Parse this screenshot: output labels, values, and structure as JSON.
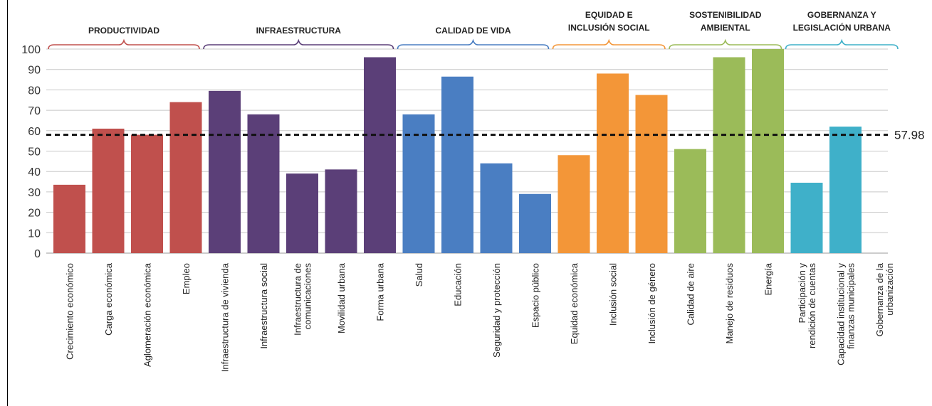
{
  "chart_data": {
    "type": "bar",
    "ylim": [
      0,
      100
    ],
    "yticks": [
      0,
      10,
      20,
      30,
      40,
      50,
      60,
      70,
      80,
      90,
      100
    ],
    "grid": true,
    "reference_line": {
      "value": 57.98,
      "label": "57.98",
      "style": "dashed"
    },
    "groups": [
      {
        "name": "PRODUCTIVIDAD",
        "name_lines": [
          "PRODUCTIVIDAD"
        ],
        "color": "#c0504d",
        "count": 4
      },
      {
        "name": "INFRAESTRUCTURA",
        "name_lines": [
          "INFRAESTRUCTURA"
        ],
        "color": "#5b3f78",
        "count": 5
      },
      {
        "name": "CALIDAD DE VIDA",
        "name_lines": [
          "CALIDAD DE VIDA"
        ],
        "color": "#4a7ec2",
        "count": 4
      },
      {
        "name": "EQUIDAD E INCLUSIÓN SOCIAL",
        "name_lines": [
          "EQUIDAD E",
          "INCLUSIÓN SOCIAL"
        ],
        "color": "#f39638",
        "count": 3
      },
      {
        "name": "SOSTENIBILIDAD AMBIENTAL",
        "name_lines": [
          "SOSTENIBILIDAD",
          "AMBIENTAL"
        ],
        "color": "#9bbb59",
        "count": 3
      },
      {
        "name": "GOBERNANZA Y LEGISLACIÓN URBANA",
        "name_lines": [
          "GOBERNANZA Y",
          "LEGISLACIÓN URBANA"
        ],
        "color": "#3fb0c9",
        "count": 3
      }
    ],
    "categories": [
      [
        "Crecimiento económico"
      ],
      [
        "Carga económica"
      ],
      [
        "Aglomeración económica"
      ],
      [
        "Empleo"
      ],
      [
        "Infraestructura de vivienda"
      ],
      [
        "Infraestructura social"
      ],
      [
        "Infraestructura de",
        "comunicaciones"
      ],
      [
        "Movilidad urbana"
      ],
      [
        "Forma urbana"
      ],
      [
        "Salud"
      ],
      [
        "Educación"
      ],
      [
        "Seguridad y protección"
      ],
      [
        "Espacio público"
      ],
      [
        "Equidad económica"
      ],
      [
        "Inclusión social"
      ],
      [
        "Inclusión de género"
      ],
      [
        "Calidad de aire"
      ],
      [
        "Manejo de residuos"
      ],
      [
        "Energía"
      ],
      [
        "Participación y",
        "rendición de cuentas"
      ],
      [
        "Capacidad institucional y",
        "finanzas municipales"
      ],
      [
        "Gobernanza de la",
        "urbanización"
      ]
    ],
    "values": [
      33.5,
      61,
      58,
      74,
      79.5,
      68,
      39,
      41,
      96,
      68,
      86.5,
      44,
      29,
      48,
      88,
      77.5,
      51,
      96,
      100,
      34.5,
      62,
      0
    ]
  }
}
